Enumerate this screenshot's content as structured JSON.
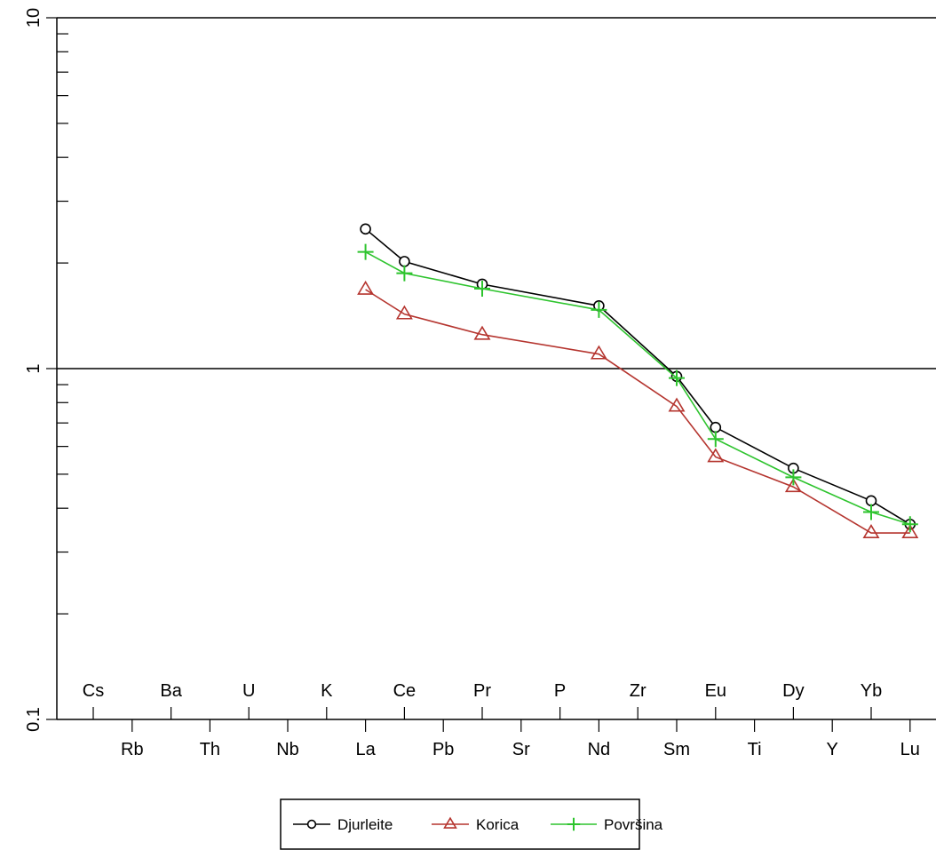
{
  "chart_data": {
    "type": "line",
    "title": "",
    "xlabel": "",
    "ylabel": "",
    "y_scale": "log",
    "ylim": [
      0.1,
      10
    ],
    "y_ticks": [
      0.1,
      1,
      10
    ],
    "y_tick_labels": [
      "0.1",
      "1",
      "10"
    ],
    "reference_lines": [
      1,
      10
    ],
    "categories": [
      "Cs",
      "Rb",
      "Ba",
      "Th",
      "U",
      "Nb",
      "K",
      "La",
      "Ce",
      "Pb",
      "Pr",
      "Sr",
      "P",
      "Nd",
      "Zr",
      "Sm",
      "Eu",
      "Ti",
      "Dy",
      "Y",
      "Yb",
      "Lu"
    ],
    "grid": false,
    "legend_position": "bottom-center",
    "series": [
      {
        "name": "Djurleite",
        "color": "#000000",
        "marker": "circle",
        "points": [
          {
            "x": "La",
            "y": 2.5
          },
          {
            "x": "Ce",
            "y": 2.02
          },
          {
            "x": "Pr",
            "y": 1.74
          },
          {
            "x": "Nd",
            "y": 1.51
          },
          {
            "x": "Sm",
            "y": 0.95
          },
          {
            "x": "Eu",
            "y": 0.68
          },
          {
            "x": "Dy",
            "y": 0.52
          },
          {
            "x": "Yb",
            "y": 0.42
          },
          {
            "x": "Lu",
            "y": 0.36
          }
        ]
      },
      {
        "name": "Korica",
        "color": "#b5352f",
        "marker": "triangle",
        "points": [
          {
            "x": "La",
            "y": 1.68
          },
          {
            "x": "Ce",
            "y": 1.43
          },
          {
            "x": "Pr",
            "y": 1.25
          },
          {
            "x": "Nd",
            "y": 1.1
          },
          {
            "x": "Sm",
            "y": 0.78
          },
          {
            "x": "Eu",
            "y": 0.56
          },
          {
            "x": "Dy",
            "y": 0.46
          },
          {
            "x": "Yb",
            "y": 0.34
          },
          {
            "x": "Lu",
            "y": 0.34
          }
        ]
      },
      {
        "name": "Površina",
        "color": "#2ec42e",
        "marker": "plus",
        "points": [
          {
            "x": "La",
            "y": 2.15
          },
          {
            "x": "Ce",
            "y": 1.87
          },
          {
            "x": "Pr",
            "y": 1.69
          },
          {
            "x": "Nd",
            "y": 1.47
          },
          {
            "x": "Sm",
            "y": 0.94
          },
          {
            "x": "Eu",
            "y": 0.63
          },
          {
            "x": "Dy",
            "y": 0.49
          },
          {
            "x": "Yb",
            "y": 0.39
          },
          {
            "x": "Lu",
            "y": 0.36
          }
        ]
      }
    ]
  }
}
